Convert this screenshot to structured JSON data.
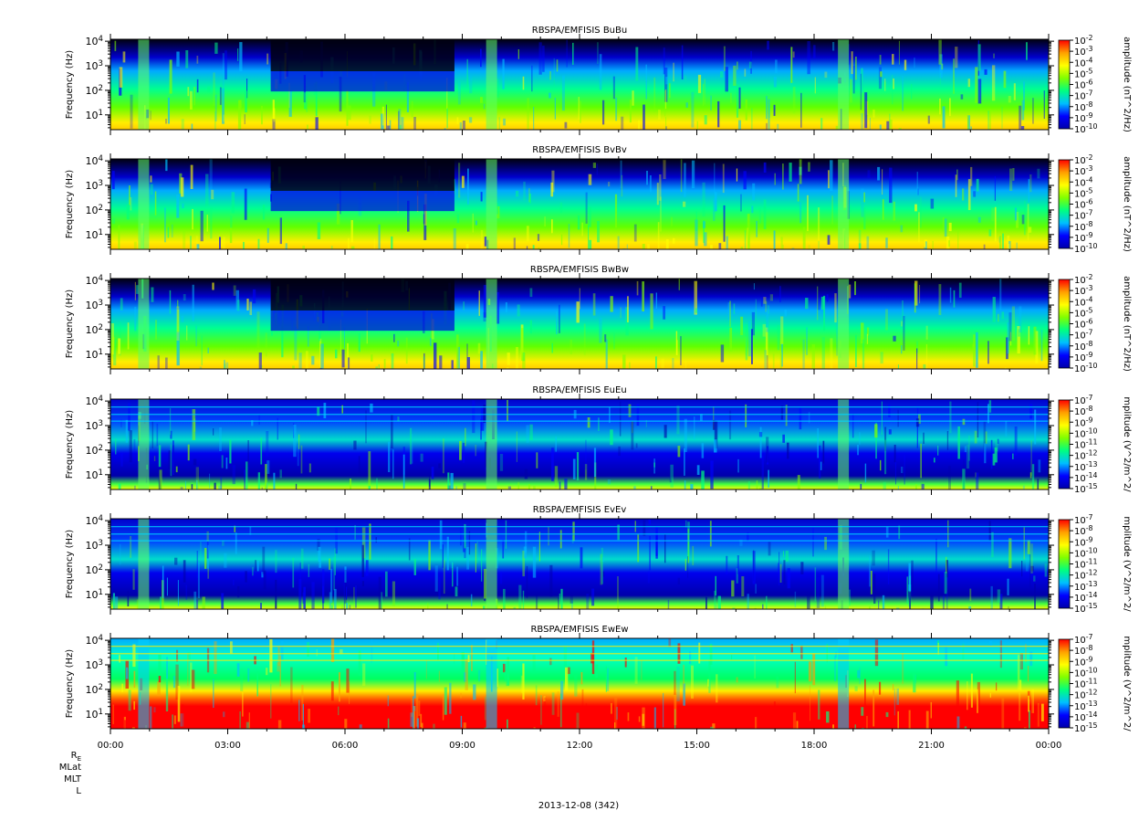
{
  "figure": {
    "date_label": "2013-12-08 (342)",
    "ephemeris_labels": [
      "R",
      "MLat",
      "MLT",
      "L"
    ],
    "ephemeris_subscript": "E"
  },
  "chart_data": [
    {
      "type": "heatmap",
      "title": "RBSPA/EMFISIS  BuBu",
      "ylabel": "Frequency (Hz)",
      "yscale": "log",
      "ylim": [
        2.5,
        12000
      ],
      "yticks": [
        10,
        100,
        1000,
        10000
      ],
      "ytick_labels": [
        "10^1",
        "10^2",
        "10^3",
        "10^4"
      ],
      "xlim": [
        "00:00",
        "24:00"
      ],
      "xticks": [
        0,
        3,
        6,
        9,
        12,
        15,
        18,
        21,
        24
      ],
      "xtick_labels": [
        "00:00",
        "03:00",
        "06:00",
        "09:00",
        "12:00",
        "15:00",
        "18:00",
        "21:00",
        "00:00"
      ],
      "colorbar": {
        "label": "amplitude (nT^2/Hz)",
        "scale": "log",
        "exponents": [
          -2,
          -3,
          -4,
          -5,
          -6,
          -7,
          -8,
          -9,
          -10
        ],
        "range": [
          1e-10,
          0.01
        ],
        "colors": [
          "#0000aa",
          "#0000ff",
          "#00bfff",
          "#00ff80",
          "#80ff00",
          "#ffff00",
          "#ffa000",
          "#ff0000"
        ]
      }
    },
    {
      "type": "heatmap",
      "title": "RBSPA/EMFISIS  BvBv",
      "ylabel": "Frequency (Hz)",
      "yscale": "log",
      "ylim": [
        2.5,
        12000
      ],
      "yticks": [
        10,
        100,
        1000,
        10000
      ],
      "ytick_labels": [
        "10^1",
        "10^2",
        "10^3",
        "10^4"
      ],
      "xlim": [
        "00:00",
        "24:00"
      ],
      "xticks": [
        0,
        3,
        6,
        9,
        12,
        15,
        18,
        21,
        24
      ],
      "xtick_labels": [
        "00:00",
        "03:00",
        "06:00",
        "09:00",
        "12:00",
        "15:00",
        "18:00",
        "21:00",
        "00:00"
      ],
      "colorbar": {
        "label": "amplitude (nT^2/Hz)",
        "scale": "log",
        "exponents": [
          -2,
          -3,
          -4,
          -5,
          -6,
          -7,
          -8,
          -9,
          -10
        ],
        "range": [
          1e-10,
          0.01
        ],
        "colors": [
          "#0000aa",
          "#0000ff",
          "#00bfff",
          "#00ff80",
          "#80ff00",
          "#ffff00",
          "#ffa000",
          "#ff0000"
        ]
      }
    },
    {
      "type": "heatmap",
      "title": "RBSPA/EMFISIS  BwBw",
      "ylabel": "Frequency (Hz)",
      "yscale": "log",
      "ylim": [
        2.5,
        12000
      ],
      "yticks": [
        10,
        100,
        1000,
        10000
      ],
      "ytick_labels": [
        "10^1",
        "10^2",
        "10^3",
        "10^4"
      ],
      "xlim": [
        "00:00",
        "24:00"
      ],
      "xticks": [
        0,
        3,
        6,
        9,
        12,
        15,
        18,
        21,
        24
      ],
      "xtick_labels": [
        "00:00",
        "03:00",
        "06:00",
        "09:00",
        "12:00",
        "15:00",
        "18:00",
        "21:00",
        "00:00"
      ],
      "colorbar": {
        "label": "amplitude (nT^2/Hz)",
        "scale": "log",
        "exponents": [
          -2,
          -3,
          -4,
          -5,
          -6,
          -7,
          -8,
          -9,
          -10
        ],
        "range": [
          1e-10,
          0.01
        ],
        "colors": [
          "#0000aa",
          "#0000ff",
          "#00bfff",
          "#00ff80",
          "#80ff00",
          "#ffff00",
          "#ffa000",
          "#ff0000"
        ]
      }
    },
    {
      "type": "heatmap",
      "title": "RBSPA/EMFISIS  EuEu",
      "ylabel": "Frequency (Hz)",
      "yscale": "log",
      "ylim": [
        2.5,
        12000
      ],
      "yticks": [
        10,
        100,
        1000,
        10000
      ],
      "ytick_labels": [
        "10^1",
        "10^2",
        "10^3",
        "10^4"
      ],
      "xlim": [
        "00:00",
        "24:00"
      ],
      "xticks": [
        0,
        3,
        6,
        9,
        12,
        15,
        18,
        21,
        24
      ],
      "xtick_labels": [
        "00:00",
        "03:00",
        "06:00",
        "09:00",
        "12:00",
        "15:00",
        "18:00",
        "21:00",
        "00:00"
      ],
      "colorbar": {
        "label": "mplitude (V^2/m^2/",
        "scale": "log",
        "exponents": [
          -7,
          -8,
          -9,
          -10,
          -11,
          -12,
          -13,
          -14,
          -15
        ],
        "range": [
          1e-15,
          1e-07
        ],
        "colors": [
          "#0000aa",
          "#0000ff",
          "#00bfff",
          "#00ff80",
          "#80ff00",
          "#ffff00",
          "#ffa000",
          "#ff0000"
        ]
      }
    },
    {
      "type": "heatmap",
      "title": "RBSPA/EMFISIS  EvEv",
      "ylabel": "Frequency (Hz)",
      "yscale": "log",
      "ylim": [
        2.5,
        12000
      ],
      "yticks": [
        10,
        100,
        1000,
        10000
      ],
      "ytick_labels": [
        "10^1",
        "10^2",
        "10^3",
        "10^4"
      ],
      "xlim": [
        "00:00",
        "24:00"
      ],
      "xticks": [
        0,
        3,
        6,
        9,
        12,
        15,
        18,
        21,
        24
      ],
      "xtick_labels": [
        "00:00",
        "03:00",
        "06:00",
        "09:00",
        "12:00",
        "15:00",
        "18:00",
        "21:00",
        "00:00"
      ],
      "colorbar": {
        "label": "mplitude (V^2/m^2/",
        "scale": "log",
        "exponents": [
          -7,
          -8,
          -9,
          -10,
          -11,
          -12,
          -13,
          -14,
          -15
        ],
        "range": [
          1e-15,
          1e-07
        ],
        "colors": [
          "#0000aa",
          "#0000ff",
          "#00bfff",
          "#00ff80",
          "#80ff00",
          "#ffff00",
          "#ffa000",
          "#ff0000"
        ]
      }
    },
    {
      "type": "heatmap",
      "title": "RBSPA/EMFISIS  EwEw",
      "ylabel": "Frequency (Hz)",
      "yscale": "log",
      "ylim": [
        2.5,
        12000
      ],
      "yticks": [
        10,
        100,
        1000,
        10000
      ],
      "ytick_labels": [
        "10^1",
        "10^2",
        "10^3",
        "10^4"
      ],
      "xlim": [
        "00:00",
        "24:00"
      ],
      "xticks": [
        0,
        3,
        6,
        9,
        12,
        15,
        18,
        21,
        24
      ],
      "xtick_labels": [
        "00:00",
        "03:00",
        "06:00",
        "09:00",
        "12:00",
        "15:00",
        "18:00",
        "21:00",
        "00:00"
      ],
      "colorbar": {
        "label": "mplitude (V^2/m^2/",
        "scale": "log",
        "exponents": [
          -7,
          -8,
          -9,
          -10,
          -11,
          -12,
          -13,
          -14,
          -15
        ],
        "range": [
          1e-15,
          1e-07
        ],
        "colors": [
          "#0000aa",
          "#0000ff",
          "#00bfff",
          "#00ff80",
          "#80ff00",
          "#ffff00",
          "#ffa000",
          "#ff0000"
        ]
      }
    }
  ]
}
